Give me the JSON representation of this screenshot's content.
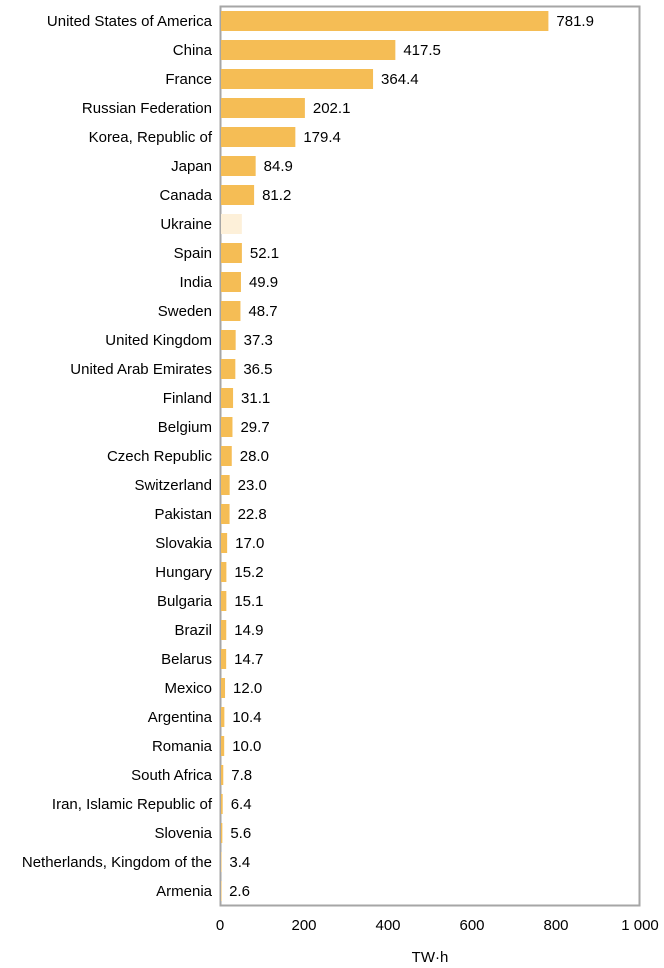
{
  "chart_data": {
    "type": "bar",
    "orientation": "horizontal",
    "title": "",
    "xlabel": "TW·h",
    "ylabel": "",
    "xlim": [
      0,
      1000
    ],
    "x_ticks": [
      "0",
      "200",
      "400",
      "600",
      "800",
      "1 000"
    ],
    "grid": false,
    "legend": "none",
    "colors": {
      "bar": "#f5bd55",
      "bar_highlight": "#fdf0d9",
      "frame": "#a6a6a6"
    },
    "categories": [
      "United States of America",
      "China",
      "France",
      "Russian Federation",
      "Korea, Republic of",
      "Japan",
      "Canada",
      "Ukraine",
      "Spain",
      "India",
      "Sweden",
      "United Kingdom",
      "United Arab Emirates",
      "Finland",
      "Belgium",
      "Czech Republic",
      "Switzerland",
      "Pakistan",
      "Slovakia",
      "Hungary",
      "Bulgaria",
      "Brazil",
      "Belarus",
      "Mexico",
      "Argentina",
      "Romania",
      "South Africa",
      "Iran, Islamic Republic of",
      "Slovenia",
      "Netherlands, Kingdom of the",
      "Armenia"
    ],
    "values": [
      781.9,
      417.5,
      364.4,
      202.1,
      179.4,
      84.9,
      81.2,
      52.0,
      52.1,
      49.9,
      48.7,
      37.3,
      36.5,
      31.1,
      29.7,
      28.0,
      23.0,
      22.8,
      17.0,
      15.2,
      15.1,
      14.9,
      14.7,
      12.0,
      10.4,
      10.0,
      7.8,
      6.4,
      5.6,
      3.4,
      2.6
    ],
    "value_labels": [
      "781.9",
      "417.5",
      "364.4",
      "202.1",
      "179.4",
      "84.9",
      "81.2",
      "",
      "52.1",
      "49.9",
      "48.7",
      "37.3",
      "36.5",
      "31.1",
      "29.7",
      "28.0",
      "23.0",
      "22.8",
      "17.0",
      "15.2",
      "15.1",
      "14.9",
      "14.7",
      "12.0",
      "10.4",
      "10.0",
      "7.8",
      "6.4",
      "5.6",
      "3.4",
      "2.6"
    ],
    "highlight": [
      "Ukraine"
    ]
  }
}
